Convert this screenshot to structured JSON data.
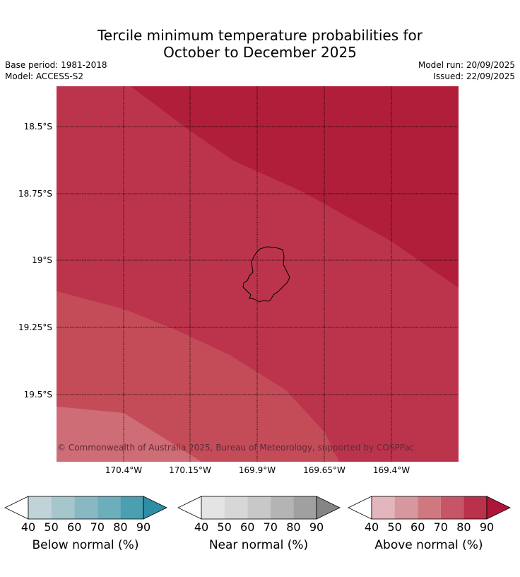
{
  "title": {
    "line1": "Tercile minimum temperature probabilities for",
    "line2": "October to December 2025"
  },
  "meta": {
    "base_period": "Base period: 1981-2018",
    "model": "Model: ACCESS-S2",
    "model_run": "Model run: 20/09/2025",
    "issued": "Issued: 22/09/2025"
  },
  "map": {
    "latitude_labels": [
      "18.5°S",
      "18.75°S",
      "19°S",
      "19.25°S",
      "19.5°S"
    ],
    "longitude_labels": [
      "170.4°W",
      "170.15°W",
      "169.9°W",
      "169.65°W",
      "169.4°W"
    ],
    "copyright": "© Commonwealth of Australia 2025, Bureau of Meteorology, supported by COSPPac",
    "zones": [
      {
        "category": "above",
        "bin": "90+",
        "color": "#b01e3a"
      },
      {
        "category": "above",
        "bin": "80-90",
        "color": "#bc344c"
      },
      {
        "category": "above",
        "bin": "70-80",
        "color": "#c44c59"
      },
      {
        "category": "above",
        "bin": "60-70",
        "color": "#cf6d76"
      }
    ]
  },
  "colorbars": [
    {
      "label": "Below normal (%)",
      "ticks": [
        "40",
        "50",
        "60",
        "70",
        "80",
        "90"
      ],
      "colors": [
        "#ffffff",
        "#bfd3d9",
        "#a5c6cb",
        "#89b8c3",
        "#6daebd",
        "#4a9fb1",
        "#2d8ea6"
      ]
    },
    {
      "label": "Near normal (%)",
      "ticks": [
        "40",
        "50",
        "60",
        "70",
        "80",
        "90"
      ],
      "colors": [
        "#ffffff",
        "#e4e4e4",
        "#d7d7d7",
        "#c8c8c8",
        "#b4b4b4",
        "#a0a0a0",
        "#858585"
      ]
    },
    {
      "label": "Above normal (%)",
      "ticks": [
        "40",
        "50",
        "60",
        "70",
        "80",
        "90"
      ],
      "colors": [
        "#ffffff",
        "#e2b6bc",
        "#d6979e",
        "#cf7880",
        "#c65667",
        "#b9314a",
        "#ae1639"
      ]
    }
  ]
}
